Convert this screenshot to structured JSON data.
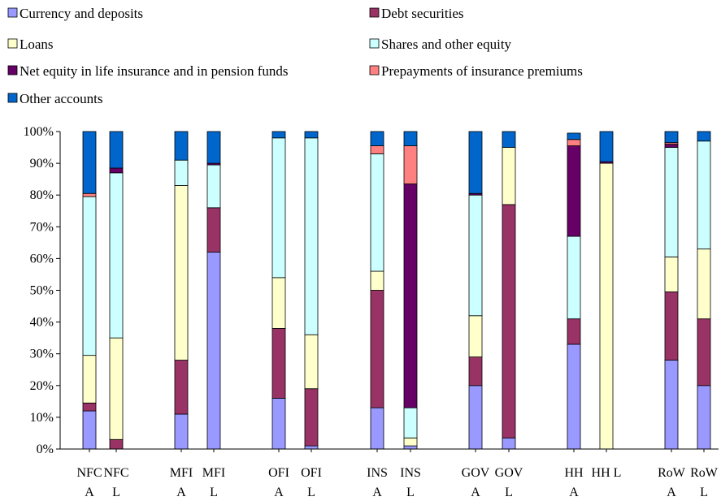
{
  "chart_data": {
    "type": "bar",
    "stacked": true,
    "normalized_percent": true,
    "title": "",
    "xlabel": "",
    "ylabel": "",
    "ylim": [
      0,
      100
    ],
    "ytick_labels": [
      "0%",
      "10%",
      "20%",
      "30%",
      "40%",
      "50%",
      "60%",
      "70%",
      "80%",
      "90%",
      "100%"
    ],
    "grid": false,
    "legend_position": "top",
    "categories": [
      {
        "top": "NFC",
        "bottom": "A"
      },
      {
        "top": "NFC",
        "bottom": "L"
      },
      {
        "top": "MFI",
        "bottom": "A"
      },
      {
        "top": "MFI",
        "bottom": "L"
      },
      {
        "top": "OFI",
        "bottom": "A"
      },
      {
        "top": "OFI",
        "bottom": "L"
      },
      {
        "top": "INS",
        "bottom": "A"
      },
      {
        "top": "INS",
        "bottom": "L"
      },
      {
        "top": "GOV",
        "bottom": "A"
      },
      {
        "top": "GOV",
        "bottom": "L"
      },
      {
        "top": "HH",
        "bottom": "A"
      },
      {
        "top": "HH L",
        "bottom": ""
      },
      {
        "top": "RoW",
        "bottom": "A"
      },
      {
        "top": "RoW",
        "bottom": "L"
      }
    ],
    "series": [
      {
        "name": "Currency and deposits",
        "color": "#9999ff",
        "values": [
          12,
          0,
          11,
          62,
          16,
          1,
          13,
          1,
          20,
          3.5,
          33,
          0,
          28,
          20
        ]
      },
      {
        "name": "Debt securities",
        "color": "#993366",
        "values": [
          2.5,
          3,
          17,
          14,
          22,
          18,
          37,
          0,
          9,
          73.5,
          8,
          0,
          21.5,
          21
        ]
      },
      {
        "name": "Loans",
        "color": "#ffffcc",
        "values": [
          15,
          32,
          55,
          0,
          16,
          17,
          6,
          2.5,
          13,
          18,
          0,
          90,
          11,
          22
        ]
      },
      {
        "name": "Shares and other equity",
        "color": "#ccffff",
        "values": [
          50,
          52,
          8,
          13.5,
          44,
          62,
          37,
          9.5,
          38,
          0,
          26,
          0,
          34.5,
          34
        ]
      },
      {
        "name": "Net equity in life insurance and in pension funds",
        "color": "#660066",
        "values": [
          0,
          1.5,
          0,
          0.5,
          0,
          0,
          0,
          70.5,
          0.5,
          0,
          28.5,
          0.5,
          1,
          0
        ]
      },
      {
        "name": "Prepayments of insurance premiums",
        "color": "#ff8080",
        "values": [
          1,
          0,
          0,
          0,
          0,
          0,
          2.5,
          12,
          0,
          0,
          2,
          0,
          0.5,
          0
        ]
      },
      {
        "name": "Other accounts",
        "color": "#0066cc",
        "values": [
          19.5,
          11.5,
          9,
          10,
          2,
          2,
          4.5,
          4.5,
          19.5,
          5,
          2,
          9.5,
          3.5,
          3
        ]
      }
    ]
  }
}
